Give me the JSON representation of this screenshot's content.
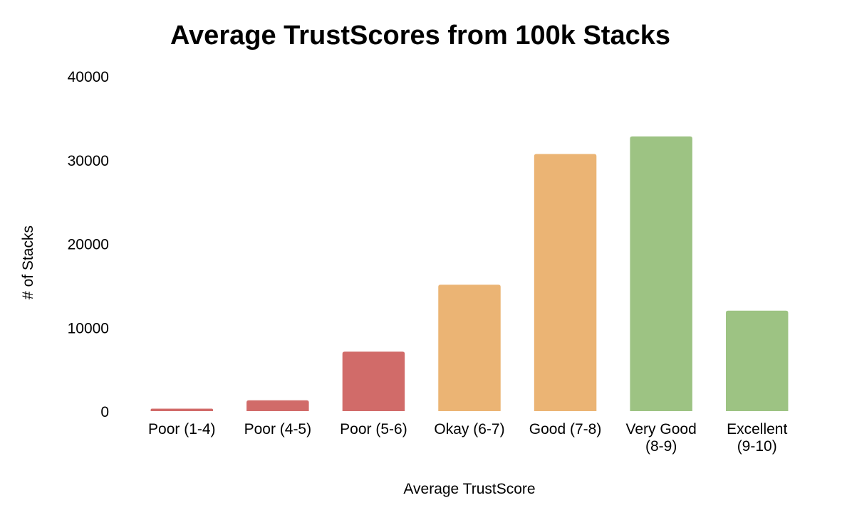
{
  "chart_data": {
    "type": "bar",
    "title": "Average TrustScores from 100k Stacks",
    "xlabel": "Average TrustScore",
    "ylabel": "# of Stacks",
    "categories": [
      [
        "Poor (1-4)"
      ],
      [
        "Poor (4-5)"
      ],
      [
        "Poor (5-6)"
      ],
      [
        "Okay (6-7)"
      ],
      [
        "Good (7-8)"
      ],
      [
        "Very Good",
        "(8-9)"
      ],
      [
        "Excellent",
        "(9-10)"
      ]
    ],
    "values": [
      300,
      1300,
      7100,
      15100,
      30700,
      32800,
      12000
    ],
    "colors": [
      "#d16b69",
      "#d16b69",
      "#d16b69",
      "#ebb474",
      "#ebb474",
      "#9dc383",
      "#9dc383"
    ],
    "ylim": [
      0,
      40000
    ],
    "yticks": [
      "0",
      "10000",
      "20000",
      "30000",
      "40000"
    ],
    "grid": false,
    "legend": "none"
  }
}
